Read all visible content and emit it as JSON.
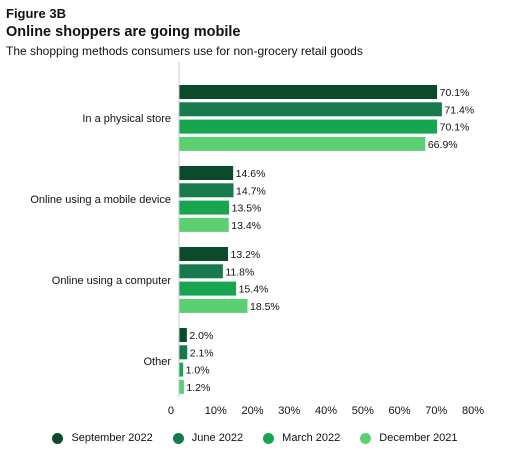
{
  "figure": {
    "label": "Figure 3B",
    "title": "Online shoppers are going mobile",
    "subtitle": "The shopping methods consumers use for non-grocery retail goods"
  },
  "chart_data": {
    "type": "bar",
    "orientation": "horizontal",
    "categories": [
      "In a physical store",
      "Online using a mobile device",
      "Online using a computer",
      "Other"
    ],
    "series": [
      {
        "name": "September 2022",
        "color": "#0b4a2b",
        "values": [
          70.1,
          14.6,
          13.2,
          2.0
        ]
      },
      {
        "name": "June 2022",
        "color": "#167a4c",
        "values": [
          71.4,
          14.7,
          11.8,
          2.1
        ]
      },
      {
        "name": "March 2022",
        "color": "#17a550",
        "values": [
          70.1,
          13.5,
          15.4,
          1.0
        ]
      },
      {
        "name": "December 2021",
        "color": "#5ccf72",
        "values": [
          66.9,
          13.4,
          18.5,
          1.2
        ]
      }
    ],
    "data_labels": [
      [
        "70.1%",
        "71.4%",
        "70.1%",
        "66.9%"
      ],
      [
        "14.6%",
        "14.7%",
        "13.5%",
        "13.4%"
      ],
      [
        "13.2%",
        "11.8%",
        "15.4%",
        "18.5%"
      ],
      [
        "2.0%",
        "2.1%",
        "1.0%",
        "1.2%"
      ]
    ],
    "xlim": [
      0,
      80
    ],
    "xticks": [
      0,
      10,
      20,
      30,
      40,
      50,
      60,
      70,
      80
    ],
    "xtick_labels": [
      "0",
      "10%",
      "20%",
      "30%",
      "40%",
      "50%",
      "60%",
      "70%",
      "80%"
    ],
    "grid": false,
    "legend_position": "bottom"
  }
}
